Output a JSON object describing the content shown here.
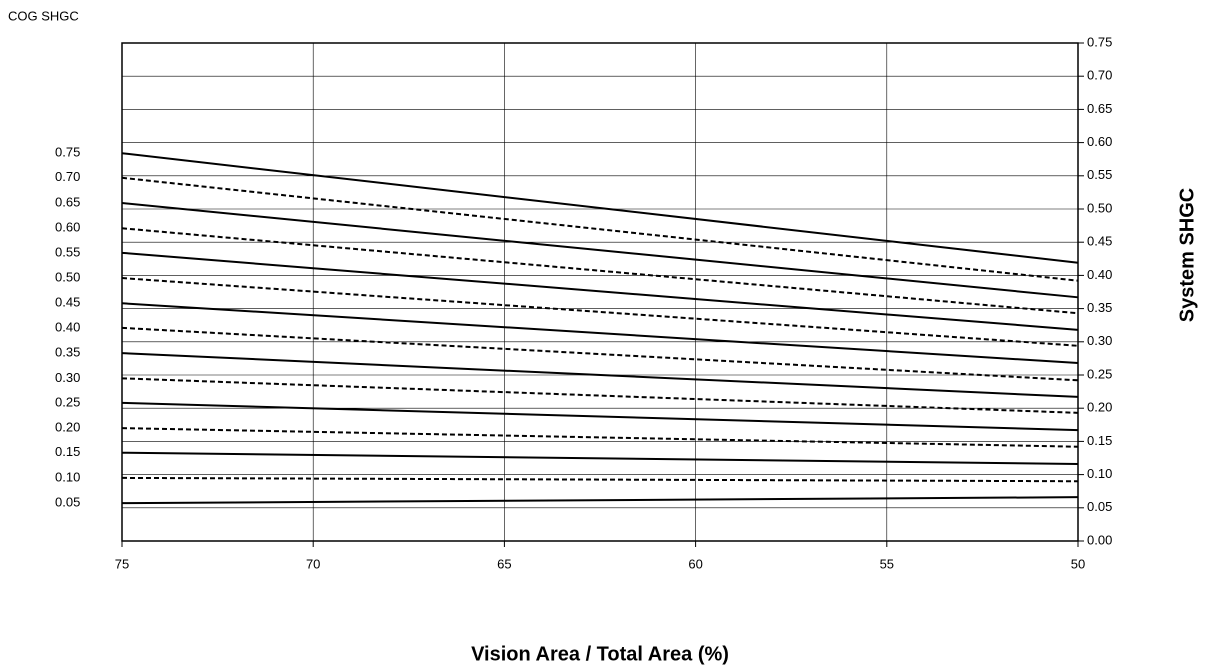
{
  "chart_data": {
    "type": "line",
    "y_title": "COG SHGC",
    "y2_title": "System SHGC",
    "x_title": "Vision Area / Total Area (%)",
    "x": [
      75,
      50
    ],
    "xlim": [
      75,
      50
    ],
    "xticks": [
      75,
      70,
      65,
      60,
      55,
      50
    ],
    "y2lim": [
      0,
      0.75
    ],
    "y2ticks": [
      {
        "value": 0,
        "label": "0.00"
      },
      0.05,
      {
        "value": 0.1,
        "label": "0.10"
      },
      0.15,
      {
        "value": 0.2,
        "label": "0.20"
      },
      0.25,
      {
        "value": 0.3,
        "label": "0.30"
      },
      0.35,
      {
        "value": 0.4,
        "label": "0.40"
      },
      0.45,
      {
        "value": 0.5,
        "label": "0.50"
      },
      0.55,
      {
        "value": 0.6,
        "label": "0.60"
      },
      0.65,
      {
        "value": 0.7,
        "label": "0.70"
      },
      0.75
    ],
    "grid": true,
    "series": [
      {
        "name": "0.75",
        "color": "#000000",
        "style": "solid",
        "axis": "y2",
        "values": [
          0.584,
          0.419
        ]
      },
      {
        "name": "0.70",
        "color": "#000000",
        "style": "dashed",
        "axis": "y2",
        "values": [
          0.547,
          0.392
        ]
      },
      {
        "name": "0.65",
        "color": "#000000",
        "style": "solid",
        "axis": "y2",
        "values": [
          0.509,
          0.367
        ]
      },
      {
        "name": "0.60",
        "color": "#000000",
        "style": "dashed",
        "axis": "y2",
        "values": [
          0.471,
          0.343
        ]
      },
      {
        "name": "0.55",
        "color": "#000000",
        "style": "solid",
        "axis": "y2",
        "values": [
          0.434,
          0.318
        ]
      },
      {
        "name": "0.50",
        "color": "#000000",
        "style": "dashed",
        "axis": "y2",
        "values": [
          0.396,
          0.294
        ]
      },
      {
        "name": "0.45",
        "color": "#000000",
        "style": "solid",
        "axis": "y2",
        "values": [
          0.358,
          0.268
        ]
      },
      {
        "name": "0.40",
        "color": "#000000",
        "style": "dashed",
        "axis": "y2",
        "values": [
          0.321,
          0.242
        ]
      },
      {
        "name": "0.35",
        "color": "#000000",
        "style": "solid",
        "axis": "y2",
        "values": [
          0.283,
          0.217
        ]
      },
      {
        "name": "0.30",
        "color": "#000000",
        "style": "dashed",
        "axis": "y2",
        "values": [
          0.245,
          0.193
        ]
      },
      {
        "name": "0.25",
        "color": "#000000",
        "style": "solid",
        "axis": "y2",
        "values": [
          0.208,
          0.167
        ]
      },
      {
        "name": "0.20",
        "color": "#000000",
        "style": "dashed",
        "axis": "y2",
        "values": [
          0.17,
          0.142
        ]
      },
      {
        "name": "0.15",
        "color": "#000000",
        "style": "solid",
        "axis": "y2",
        "values": [
          0.133,
          0.116
        ]
      },
      {
        "name": "0.10",
        "color": "#000000",
        "style": "dashed",
        "axis": "y2",
        "values": [
          0.095,
          0.09
        ]
      },
      {
        "name": "0.05",
        "color": "#000000",
        "style": "solid",
        "axis": "y2",
        "values": [
          0.057,
          0.066
        ]
      }
    ]
  }
}
